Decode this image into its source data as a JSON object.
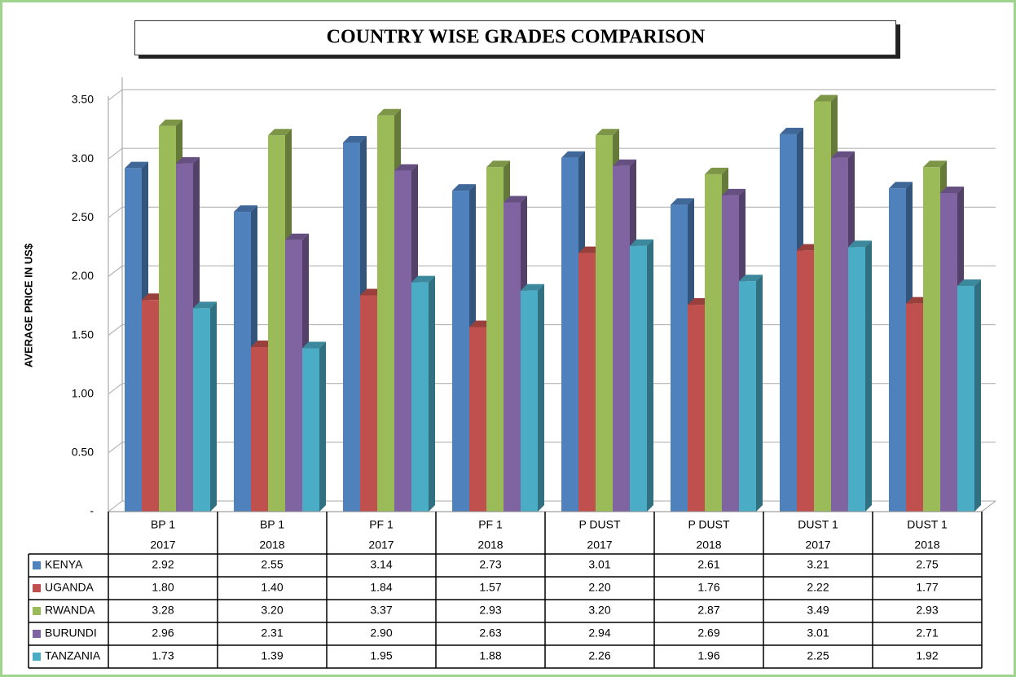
{
  "chart_data": {
    "type": "bar3d",
    "title": "COUNTRY WISE GRADES COMPARISON",
    "y_label": "AVERAGE PRICE IN US$",
    "categories": [
      [
        "BP 1",
        "2017"
      ],
      [
        "BP 1",
        "2018"
      ],
      [
        "PF 1",
        "2017"
      ],
      [
        "PF 1",
        "2018"
      ],
      [
        "P DUST",
        "2017"
      ],
      [
        "P DUST",
        "2018"
      ],
      [
        "DUST 1",
        "2017"
      ],
      [
        "DUST 1",
        "2018"
      ]
    ],
    "ylim": [
      0,
      3.5
    ],
    "yticks": [
      {
        "value": 0,
        "label": "-"
      },
      {
        "value": 0.5,
        "label": "0.50"
      },
      {
        "value": 1,
        "label": "1.00"
      },
      {
        "value": 1.5,
        "label": "1.50"
      },
      {
        "value": 2,
        "label": "2.00"
      },
      {
        "value": 2.5,
        "label": "2.50"
      },
      {
        "value": 3,
        "label": "3.00"
      },
      {
        "value": 3.5,
        "label": "3.50"
      }
    ],
    "grid": true,
    "series": [
      {
        "name": "KENYA",
        "color": "#4f81bd",
        "values": [
          2.92,
          2.55,
          3.14,
          2.73,
          3.01,
          2.61,
          3.21,
          2.75
        ],
        "value_labels": [
          "2.92",
          "2.55",
          "3.14",
          "2.73",
          "3.01",
          "2.61",
          "3.21",
          "2.75"
        ]
      },
      {
        "name": "UGANDA",
        "color": "#c0504d",
        "values": [
          1.8,
          1.4,
          1.84,
          1.57,
          2.2,
          1.76,
          2.22,
          1.77
        ],
        "value_labels": [
          "1.80",
          "1.40",
          "1.84",
          "1.57",
          "2.20",
          "1.76",
          "2.22",
          "1.77"
        ]
      },
      {
        "name": "RWANDA",
        "color": "#9bbb59",
        "values": [
          3.28,
          3.2,
          3.37,
          2.93,
          3.2,
          2.87,
          3.49,
          2.93
        ],
        "value_labels": [
          "3.28",
          "3.20",
          "3.37",
          "2.93",
          "3.20",
          "2.87",
          "3.49",
          "2.93"
        ]
      },
      {
        "name": "BURUNDI",
        "color": "#8064a2",
        "values": [
          2.96,
          2.31,
          2.9,
          2.63,
          2.94,
          2.69,
          3.01,
          2.71
        ],
        "value_labels": [
          "2.96",
          "2.31",
          "2.90",
          "2.63",
          "2.94",
          "2.69",
          "3.01",
          "2.71"
        ]
      },
      {
        "name": "TANZANIA",
        "color": "#4bacc6",
        "values": [
          1.73,
          1.39,
          1.95,
          1.88,
          2.26,
          1.96,
          2.25,
          1.92
        ],
        "value_labels": [
          "1.73",
          "1.39",
          "1.95",
          "1.88",
          "2.26",
          "1.96",
          "2.25",
          "1.92"
        ]
      }
    ]
  }
}
